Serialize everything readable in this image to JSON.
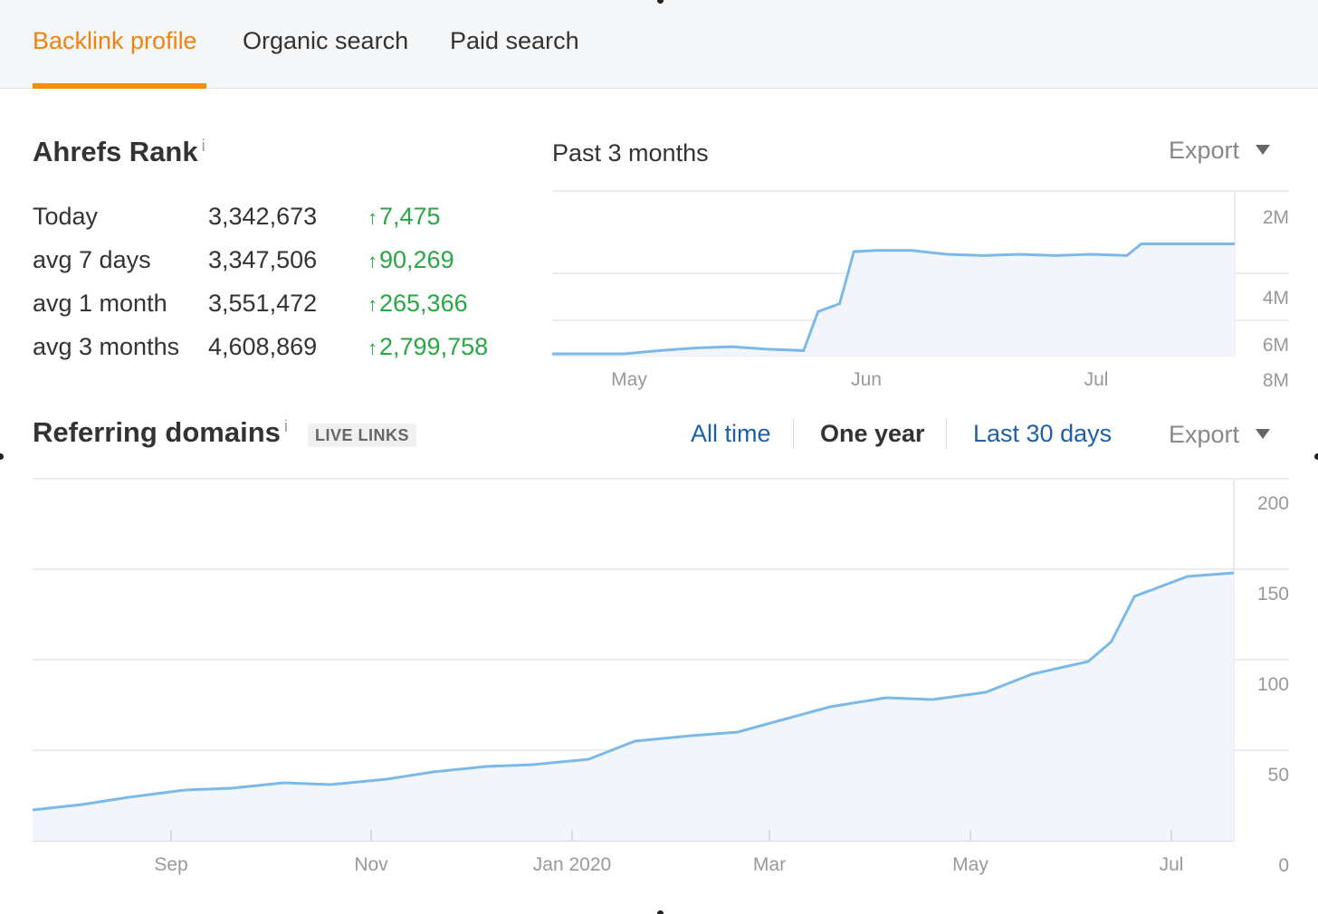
{
  "tabs": [
    {
      "label": "Backlink profile",
      "active": true
    },
    {
      "label": "Organic search",
      "active": false
    },
    {
      "label": "Paid search",
      "active": false
    }
  ],
  "ahrefs_rank": {
    "title": "Ahrefs Rank",
    "info": "i",
    "rows": [
      {
        "label": "Today",
        "value": "3,342,673",
        "change": "7,475"
      },
      {
        "label": "avg 7 days",
        "value": "3,347,506",
        "change": "90,269"
      },
      {
        "label": "avg 1 month",
        "value": "3,551,472",
        "change": "265,366"
      },
      {
        "label": "avg 3 months",
        "value": "4,608,869",
        "change": "2,799,758"
      }
    ],
    "period_label": "Past 3 months",
    "export_label": "Export"
  },
  "referring_domains": {
    "title": "Referring domains",
    "info": "i",
    "badge": "LIVE LINKS",
    "ranges": [
      "All time",
      "One year",
      "Last 30 days"
    ],
    "active_range": "One year",
    "export_label": "Export"
  },
  "colors": {
    "accent": "#f29100",
    "line": "#7cb9e8",
    "fill": "#f2f6fc",
    "link": "#1d5fa8",
    "positive": "#28a745"
  },
  "chart_data": [
    {
      "type": "area",
      "name": "ahrefs-rank-chart",
      "y_axis_inverted": true,
      "yticks": [
        "2M",
        "4M",
        "6M",
        "8M"
      ],
      "ylim": [
        0,
        8000000
      ],
      "xticks": [
        "May",
        "Jun",
        "Jul"
      ],
      "x": [
        "Apr 21",
        "Apr 26",
        "May 1",
        "May 6",
        "May 11",
        "May 16",
        "May 21",
        "May 26",
        "May 28",
        "May 31",
        "Jun 2",
        "Jun 5",
        "Jun 10",
        "Jun 15",
        "Jun 20",
        "Jun 25",
        "Jun 30",
        "Jul 5",
        "Jul 10",
        "Jul 12",
        "Jul 20",
        "Jul 25"
      ],
      "y": [
        7100000,
        7150000,
        7100000,
        6900000,
        6800000,
        6750000,
        6850000,
        6900000,
        5400000,
        5100000,
        3100000,
        3050000,
        3050000,
        3200000,
        3250000,
        3200000,
        3250000,
        3200000,
        3250000,
        2800000,
        2800000,
        2800000
      ],
      "grid": true
    },
    {
      "type": "area",
      "name": "referring-domains-chart",
      "yticks": [
        "200",
        "150",
        "100",
        "50",
        "0"
      ],
      "ylim": [
        0,
        200
      ],
      "xticks": [
        "Sep",
        "Nov",
        "Jan 2020",
        "Mar",
        "May",
        "Jul"
      ],
      "x": [
        "Jul 17",
        "Aug 1",
        "Aug 15",
        "Sep 1",
        "Sep 15",
        "Oct 1",
        "Oct 15",
        "Nov 1",
        "Nov 15",
        "Dec 1",
        "Dec 15",
        "Jan 1",
        "Jan 15",
        "Feb 1",
        "Feb 15",
        "Mar 1",
        "Mar 15",
        "Apr 1",
        "Apr 15",
        "May 1",
        "May 15",
        "Jun 1",
        "Jun 8",
        "Jun 15",
        "Jul 1",
        "Jul 15"
      ],
      "y": [
        17,
        20,
        24,
        28,
        29,
        32,
        31,
        34,
        38,
        41,
        42,
        45,
        55,
        58,
        60,
        67,
        74,
        79,
        78,
        82,
        92,
        99,
        110,
        135,
        146,
        148
      ],
      "grid": true
    }
  ]
}
